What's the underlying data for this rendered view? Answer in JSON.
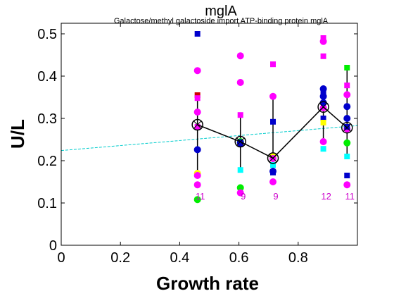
{
  "chart_data": {
    "type": "scatter",
    "title": "mglA",
    "subtitle": "Galactose/methyl galactoside import ATP-binding protein mglA",
    "xlabel": "Growth rate",
    "ylabel": "U/L",
    "xlim": [
      0,
      1.0
    ],
    "ylim": [
      0,
      0.525
    ],
    "xticks": [
      0,
      0.2,
      0.4,
      0.6,
      0.8
    ],
    "xtick_labels": [
      "0",
      "0.2",
      "0.4",
      "0.6",
      "0.8"
    ],
    "yticks": [
      0,
      0.1,
      0.2,
      0.3,
      0.4,
      0.5
    ],
    "ytick_labels": [
      "0",
      "0.1",
      "0.2",
      "0.3",
      "0.4",
      "0.5"
    ],
    "grid": false,
    "colors": {
      "magenta": "#ff00ff",
      "blue": "#0000cc",
      "cyan": "#00ffff",
      "green": "#00ee00",
      "yellow": "#ffff00",
      "red": "#cc0000",
      "mean_line": "#000000",
      "fit_line": "#00cccc",
      "count_text": "#cc00cc"
    },
    "points": [
      {
        "x": 0.46,
        "y": 0.5,
        "shape": "square",
        "color": "blue"
      },
      {
        "x": 0.46,
        "y": 0.413,
        "shape": "circle",
        "color": "magenta"
      },
      {
        "x": 0.46,
        "y": 0.355,
        "shape": "square",
        "color": "red"
      },
      {
        "x": 0.46,
        "y": 0.348,
        "shape": "square",
        "color": "magenta"
      },
      {
        "x": 0.46,
        "y": 0.315,
        "shape": "circle",
        "color": "magenta"
      },
      {
        "x": 0.46,
        "y": 0.28,
        "shape": "square",
        "color": "magenta"
      },
      {
        "x": 0.46,
        "y": 0.226,
        "shape": "circle",
        "color": "blue"
      },
      {
        "x": 0.46,
        "y": 0.17,
        "shape": "circle",
        "color": "yellow"
      },
      {
        "x": 0.46,
        "y": 0.165,
        "shape": "circle",
        "color": "magenta"
      },
      {
        "x": 0.46,
        "y": 0.143,
        "shape": "circle",
        "color": "magenta"
      },
      {
        "x": 0.46,
        "y": 0.108,
        "shape": "circle",
        "color": "green"
      },
      {
        "x": 0.605,
        "y": 0.448,
        "shape": "circle",
        "color": "magenta"
      },
      {
        "x": 0.605,
        "y": 0.385,
        "shape": "circle",
        "color": "magenta"
      },
      {
        "x": 0.605,
        "y": 0.308,
        "shape": "square",
        "color": "magenta"
      },
      {
        "x": 0.605,
        "y": 0.245,
        "shape": "circle",
        "color": "green"
      },
      {
        "x": 0.605,
        "y": 0.24,
        "shape": "square",
        "color": "blue"
      },
      {
        "x": 0.605,
        "y": 0.178,
        "shape": "square",
        "color": "cyan"
      },
      {
        "x": 0.605,
        "y": 0.136,
        "shape": "circle",
        "color": "green"
      },
      {
        "x": 0.605,
        "y": 0.124,
        "shape": "circle",
        "color": "magenta"
      },
      {
        "x": 0.605,
        "y": 0.243,
        "shape": "circle",
        "color": "blue"
      },
      {
        "x": 0.715,
        "y": 0.428,
        "shape": "square",
        "color": "magenta"
      },
      {
        "x": 0.715,
        "y": 0.352,
        "shape": "circle",
        "color": "magenta"
      },
      {
        "x": 0.715,
        "y": 0.292,
        "shape": "square",
        "color": "blue"
      },
      {
        "x": 0.715,
        "y": 0.21,
        "shape": "circle",
        "color": "yellow"
      },
      {
        "x": 0.715,
        "y": 0.19,
        "shape": "square",
        "color": "cyan"
      },
      {
        "x": 0.715,
        "y": 0.175,
        "shape": "circle",
        "color": "blue"
      },
      {
        "x": 0.715,
        "y": 0.172,
        "shape": "square",
        "color": "blue"
      },
      {
        "x": 0.715,
        "y": 0.15,
        "shape": "circle",
        "color": "magenta"
      },
      {
        "x": 0.715,
        "y": 0.205,
        "shape": "circle",
        "color": "magenta"
      },
      {
        "x": 0.885,
        "y": 0.49,
        "shape": "square",
        "color": "magenta"
      },
      {
        "x": 0.885,
        "y": 0.482,
        "shape": "circle",
        "color": "magenta"
      },
      {
        "x": 0.885,
        "y": 0.447,
        "shape": "square",
        "color": "magenta"
      },
      {
        "x": 0.885,
        "y": 0.37,
        "shape": "circle",
        "color": "blue"
      },
      {
        "x": 0.885,
        "y": 0.352,
        "shape": "circle",
        "color": "blue"
      },
      {
        "x": 0.885,
        "y": 0.3,
        "shape": "square",
        "color": "blue"
      },
      {
        "x": 0.885,
        "y": 0.29,
        "shape": "square",
        "color": "yellow"
      },
      {
        "x": 0.885,
        "y": 0.245,
        "shape": "circle",
        "color": "magenta"
      },
      {
        "x": 0.885,
        "y": 0.228,
        "shape": "square",
        "color": "cyan"
      },
      {
        "x": 0.885,
        "y": 0.325,
        "shape": "circle",
        "color": "magenta"
      },
      {
        "x": 0.885,
        "y": 0.337,
        "shape": "circle",
        "color": "blue"
      },
      {
        "x": 0.885,
        "y": 0.36,
        "shape": "square",
        "color": "blue"
      },
      {
        "x": 0.965,
        "y": 0.42,
        "shape": "square",
        "color": "green"
      },
      {
        "x": 0.965,
        "y": 0.378,
        "shape": "square",
        "color": "magenta"
      },
      {
        "x": 0.965,
        "y": 0.356,
        "shape": "circle",
        "color": "magenta"
      },
      {
        "x": 0.965,
        "y": 0.328,
        "shape": "circle",
        "color": "blue"
      },
      {
        "x": 0.965,
        "y": 0.242,
        "shape": "circle",
        "color": "green"
      },
      {
        "x": 0.965,
        "y": 0.21,
        "shape": "square",
        "color": "cyan"
      },
      {
        "x": 0.965,
        "y": 0.165,
        "shape": "square",
        "color": "blue"
      },
      {
        "x": 0.965,
        "y": 0.143,
        "shape": "circle",
        "color": "magenta"
      },
      {
        "x": 0.965,
        "y": 0.275,
        "shape": "circle",
        "color": "magenta"
      },
      {
        "x": 0.965,
        "y": 0.28,
        "shape": "square",
        "color": "blue"
      },
      {
        "x": 0.965,
        "y": 0.3,
        "shape": "circle",
        "color": "blue"
      }
    ],
    "means": [
      {
        "x": 0.46,
        "y": 0.285,
        "ylo": 0.172,
        "yhi": 0.352,
        "count": "11"
      },
      {
        "x": 0.605,
        "y": 0.245,
        "ylo": 0.175,
        "yhi": 0.31,
        "count": "9"
      },
      {
        "x": 0.715,
        "y": 0.206,
        "ylo": 0.172,
        "yhi": 0.352,
        "count": "9"
      },
      {
        "x": 0.885,
        "y": 0.327,
        "ylo": 0.244,
        "yhi": 0.37,
        "count": "12"
      },
      {
        "x": 0.965,
        "y": 0.278,
        "ylo": 0.21,
        "yhi": 0.42,
        "count": "11"
      }
    ],
    "count_label_y": 0.1,
    "fit_line": {
      "x": [
        0,
        1.0
      ],
      "y": [
        0.224,
        0.283
      ]
    }
  }
}
